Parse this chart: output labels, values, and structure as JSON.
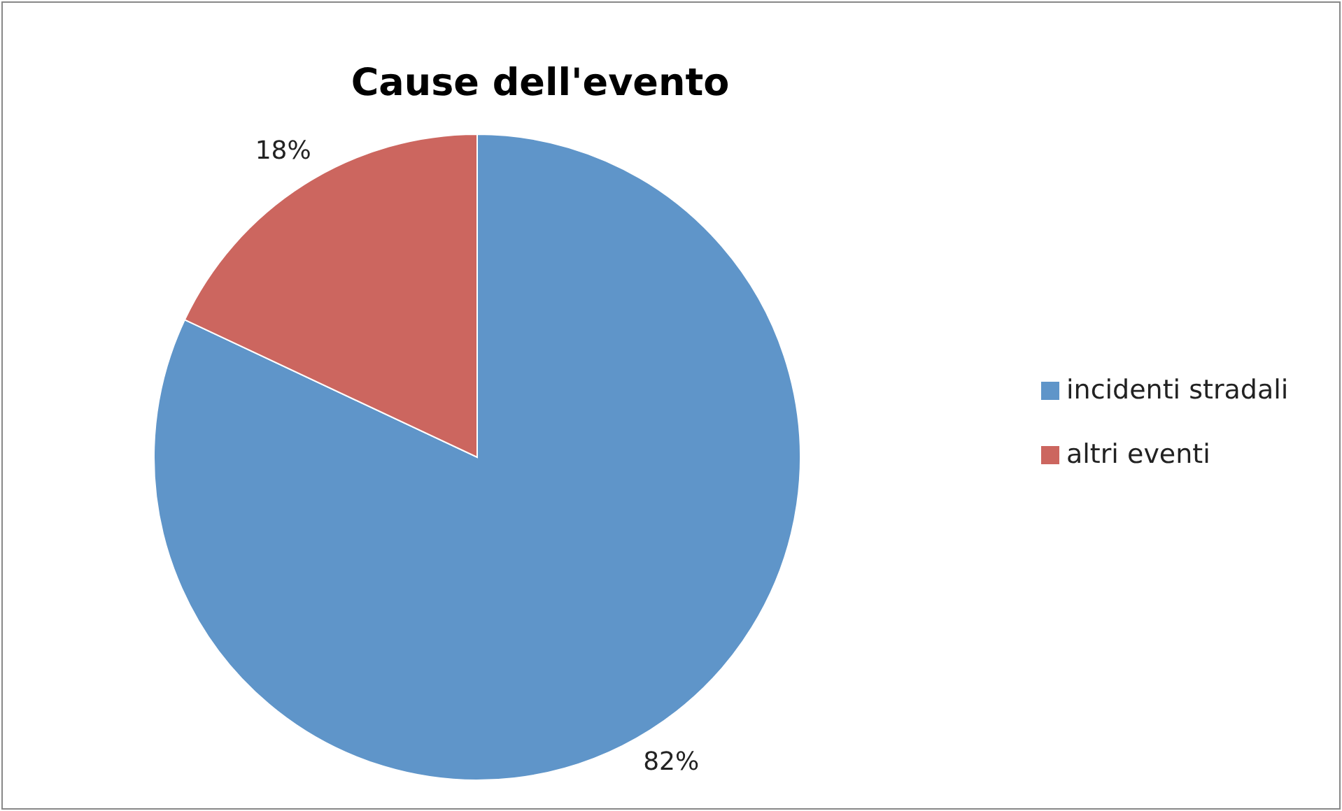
{
  "chart_data": {
    "type": "pie",
    "title": "Cause dell'evento",
    "categories": [
      "incidenti stradali",
      "altri eventi"
    ],
    "values": [
      82,
      18
    ],
    "colors": [
      "#5f95c9",
      "#cc665f"
    ],
    "value_labels": [
      "82%",
      "18%"
    ],
    "legend": "right"
  }
}
